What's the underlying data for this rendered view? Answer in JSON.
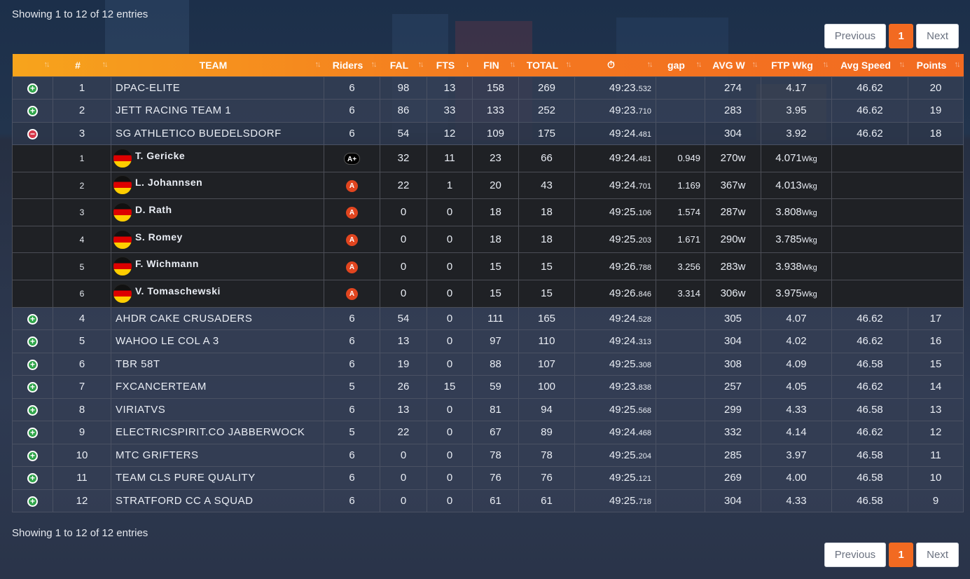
{
  "entries_info": "Showing 1 to 12 of 12 entries",
  "pagination": {
    "previous": "Previous",
    "current": "1",
    "next": "Next"
  },
  "colors": {
    "accent": "#f26a21",
    "header_start": "#f7a41c",
    "plus": "#2fa44a",
    "minus": "#d6384a"
  },
  "table": {
    "headers": [
      "",
      "#",
      "TEAM",
      "Riders",
      "FAL",
      "FTS",
      "FIN",
      "TOTAL",
      "⏱",
      "gap",
      "AVG W",
      "FTP Wkg",
      "Avg Speed",
      "Points"
    ],
    "teams": [
      {
        "icon": "plus-icon",
        "rank": "1",
        "name": "DPAC-ELITE",
        "riders": "6",
        "fal": "98",
        "fts": "13",
        "fin": "158",
        "total": "269",
        "time": "49:23.",
        "ms": "532",
        "avgw": "274",
        "ftp": "4.17",
        "speed": "46.62",
        "points": "20"
      },
      {
        "icon": "plus-icon",
        "rank": "2",
        "name": "JETT RACING TEAM 1",
        "riders": "6",
        "fal": "86",
        "fts": "33",
        "fin": "133",
        "total": "252",
        "time": "49:23.",
        "ms": "710",
        "avgw": "283",
        "ftp": "3.95",
        "speed": "46.62",
        "points": "19"
      },
      {
        "icon": "minus-icon",
        "rank": "3",
        "name": "SG ATHLETICO BUEDELSDORF",
        "riders": "6",
        "fal": "54",
        "fts": "12",
        "fin": "109",
        "total": "175",
        "time": "49:24.",
        "ms": "481",
        "avgw": "304",
        "ftp": "3.92",
        "speed": "46.62",
        "points": "18"
      },
      {
        "icon": "plus-icon",
        "rank": "4",
        "name": "AHDR CAKE CRUSADERS",
        "riders": "6",
        "fal": "54",
        "fts": "0",
        "fin": "111",
        "total": "165",
        "time": "49:24.",
        "ms": "528",
        "avgw": "305",
        "ftp": "4.07",
        "speed": "46.62",
        "points": "17"
      },
      {
        "icon": "plus-icon",
        "rank": "5",
        "name": "WAHOO LE COL A 3",
        "riders": "6",
        "fal": "13",
        "fts": "0",
        "fin": "97",
        "total": "110",
        "time": "49:24.",
        "ms": "313",
        "avgw": "304",
        "ftp": "4.02",
        "speed": "46.62",
        "points": "16"
      },
      {
        "icon": "plus-icon",
        "rank": "6",
        "name": "TBR 58T",
        "riders": "6",
        "fal": "19",
        "fts": "0",
        "fin": "88",
        "total": "107",
        "time": "49:25.",
        "ms": "308",
        "avgw": "308",
        "ftp": "4.09",
        "speed": "46.58",
        "points": "15"
      },
      {
        "icon": "plus-icon",
        "rank": "7",
        "name": "FXCANCERTEAM",
        "riders": "5",
        "fal": "26",
        "fts": "15",
        "fin": "59",
        "total": "100",
        "time": "49:23.",
        "ms": "838",
        "avgw": "257",
        "ftp": "4.05",
        "speed": "46.62",
        "points": "14"
      },
      {
        "icon": "plus-icon",
        "rank": "8",
        "name": "VIRIATVS",
        "riders": "6",
        "fal": "13",
        "fts": "0",
        "fin": "81",
        "total": "94",
        "time": "49:25.",
        "ms": "568",
        "avgw": "299",
        "ftp": "4.33",
        "speed": "46.58",
        "points": "13"
      },
      {
        "icon": "plus-icon",
        "rank": "9",
        "name": "ELECTRICSPIRIT.CO JABBERWOCK",
        "riders": "5",
        "fal": "22",
        "fts": "0",
        "fin": "67",
        "total": "89",
        "time": "49:24.",
        "ms": "468",
        "avgw": "332",
        "ftp": "4.14",
        "speed": "46.62",
        "points": "12"
      },
      {
        "icon": "plus-icon",
        "rank": "10",
        "name": "MTC GRIFTERS",
        "riders": "6",
        "fal": "0",
        "fts": "0",
        "fin": "78",
        "total": "78",
        "time": "49:25.",
        "ms": "204",
        "avgw": "285",
        "ftp": "3.97",
        "speed": "46.58",
        "points": "11"
      },
      {
        "icon": "plus-icon",
        "rank": "11",
        "name": "TEAM CLS PURE QUALITY",
        "riders": "6",
        "fal": "0",
        "fts": "0",
        "fin": "76",
        "total": "76",
        "time": "49:25.",
        "ms": "121",
        "avgw": "269",
        "ftp": "4.00",
        "speed": "46.58",
        "points": "10"
      },
      {
        "icon": "plus-icon",
        "rank": "12",
        "name": "STRATFORD CC A SQUAD",
        "riders": "6",
        "fal": "0",
        "fts": "0",
        "fin": "61",
        "total": "61",
        "time": "49:25.",
        "ms": "718",
        "avgw": "304",
        "ftp": "4.33",
        "speed": "46.58",
        "points": "9"
      }
    ],
    "riders": [
      {
        "pos": "1",
        "flag": "germany-flag",
        "name": "T. Gericke",
        "cat": "A+",
        "fal": "32",
        "fts": "11",
        "fin": "23",
        "total": "66",
        "time": "49:24.",
        "ms": "481",
        "gap": "0.949",
        "watts": "270",
        "wunit": "w",
        "wkg": "4.071",
        "wkgunit": "Wkg"
      },
      {
        "pos": "2",
        "flag": "germany-flag",
        "name": "L. Johannsen",
        "cat": "A",
        "fal": "22",
        "fts": "1",
        "fin": "20",
        "total": "43",
        "time": "49:24.",
        "ms": "701",
        "gap": "1.169",
        "watts": "367",
        "wunit": "w",
        "wkg": "4.013",
        "wkgunit": "Wkg"
      },
      {
        "pos": "3",
        "flag": "germany-flag",
        "name": "D. Rath",
        "cat": "A",
        "fal": "0",
        "fts": "0",
        "fin": "18",
        "total": "18",
        "time": "49:25.",
        "ms": "106",
        "gap": "1.574",
        "watts": "287",
        "wunit": "w",
        "wkg": "3.808",
        "wkgunit": "Wkg"
      },
      {
        "pos": "4",
        "flag": "germany-flag",
        "name": "S. Romey",
        "cat": "A",
        "fal": "0",
        "fts": "0",
        "fin": "18",
        "total": "18",
        "time": "49:25.",
        "ms": "203",
        "gap": "1.671",
        "watts": "290",
        "wunit": "w",
        "wkg": "3.785",
        "wkgunit": "Wkg"
      },
      {
        "pos": "5",
        "flag": "germany-flag",
        "name": "F. Wichmann",
        "cat": "A",
        "fal": "0",
        "fts": "0",
        "fin": "15",
        "total": "15",
        "time": "49:26.",
        "ms": "788",
        "gap": "3.256",
        "watts": "283",
        "wunit": "w",
        "wkg": "3.938",
        "wkgunit": "Wkg"
      },
      {
        "pos": "6",
        "flag": "germany-flag",
        "name": "V. Tomaschewski",
        "cat": "A",
        "fal": "0",
        "fts": "0",
        "fin": "15",
        "total": "15",
        "time": "49:26.",
        "ms": "846",
        "gap": "3.314",
        "watts": "306",
        "wunit": "w",
        "wkg": "3.975",
        "wkgunit": "Wkg"
      }
    ]
  }
}
